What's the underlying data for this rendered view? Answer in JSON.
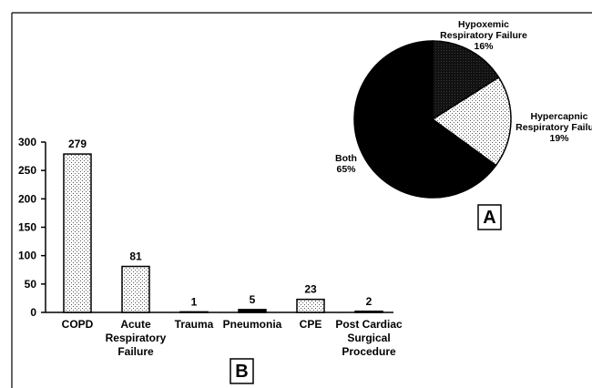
{
  "chart_data": [
    {
      "type": "bar",
      "panel_label": "B",
      "categories": [
        [
          "COPD"
        ],
        [
          "Acute",
          "Respiratory",
          "Failure"
        ],
        [
          "Trauma"
        ],
        [
          "Pneumonia"
        ],
        [
          "CPE"
        ],
        [
          "Post Cardiac",
          "Surgical",
          "Procedure"
        ]
      ],
      "values": [
        279,
        81,
        1,
        5,
        23,
        2
      ],
      "value_labels": [
        "279",
        "81",
        "1",
        "5",
        "23",
        "2"
      ],
      "ylim": [
        0,
        300
      ],
      "yticks": [
        0,
        50,
        100,
        150,
        200,
        250,
        300
      ],
      "grid": false,
      "bar_fill": "stipple"
    },
    {
      "type": "pie",
      "panel_label": "A",
      "slices": [
        {
          "label": [
            "Hypoxemic",
            "Respiratory Failure",
            "16%"
          ],
          "value": 16,
          "fill": "#111111"
        },
        {
          "label": [
            "Hypercapnic",
            "Respiratory Failure",
            "19%"
          ],
          "value": 19,
          "fill": "stipple"
        },
        {
          "label": [
            "Both",
            "65%"
          ],
          "value": 65,
          "fill": "#000000"
        }
      ]
    }
  ]
}
